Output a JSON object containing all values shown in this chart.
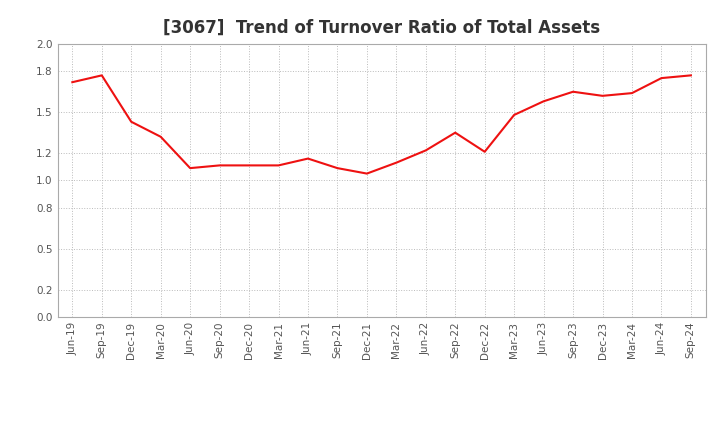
{
  "title": "[3067]  Trend of Turnover Ratio of Total Assets",
  "line_color": "#EE1111",
  "background_color": "#FFFFFF",
  "plot_bg_color": "#FFFFFF",
  "grid_color": "#BBBBBB",
  "ylim": [
    0.0,
    2.0
  ],
  "yticks": [
    0.0,
    0.2,
    0.5,
    0.8,
    1.0,
    1.2,
    1.5,
    1.8,
    2.0
  ],
  "labels": [
    "Jun-19",
    "Sep-19",
    "Dec-19",
    "Mar-20",
    "Jun-20",
    "Sep-20",
    "Dec-20",
    "Mar-21",
    "Jun-21",
    "Sep-21",
    "Dec-21",
    "Mar-22",
    "Jun-22",
    "Sep-22",
    "Dec-22",
    "Mar-23",
    "Jun-23",
    "Sep-23",
    "Dec-23",
    "Mar-24",
    "Jun-24",
    "Sep-24"
  ],
  "values": [
    1.72,
    1.77,
    1.43,
    1.32,
    1.09,
    1.11,
    1.11,
    1.11,
    1.16,
    1.09,
    1.05,
    1.13,
    1.22,
    1.35,
    1.21,
    1.48,
    1.58,
    1.65,
    1.62,
    1.64,
    1.75,
    1.77
  ],
  "title_fontsize": 12,
  "tick_fontsize": 7.5
}
